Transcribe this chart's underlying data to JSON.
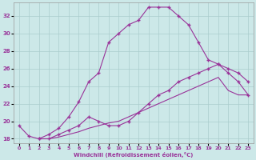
{
  "xlabel": "Windchill (Refroidissement éolien,°C)",
  "bg_color": "#cce8e8",
  "line_color": "#993399",
  "grid_color": "#aacccc",
  "xlim": [
    -0.5,
    23.5
  ],
  "ylim": [
    17.5,
    33.5
  ],
  "xticks": [
    0,
    1,
    2,
    3,
    4,
    5,
    6,
    7,
    8,
    9,
    10,
    11,
    12,
    13,
    14,
    15,
    16,
    17,
    18,
    19,
    20,
    21,
    22,
    23
  ],
  "yticks": [
    18,
    20,
    22,
    24,
    26,
    28,
    30,
    32
  ],
  "curve1_x": [
    0,
    1,
    2,
    3,
    4,
    5,
    6,
    7,
    8,
    9,
    10,
    11,
    12,
    13,
    14,
    15,
    16,
    17,
    18,
    19,
    20,
    21,
    22,
    23
  ],
  "curve1_y": [
    19.5,
    18.3,
    18.0,
    18.5,
    19.2,
    20.5,
    22.2,
    24.5,
    25.5,
    29.0,
    30.0,
    31.0,
    31.5,
    33.0,
    33.0,
    33.0,
    32.0,
    31.0,
    29.0,
    27.0,
    26.5,
    25.5,
    24.5,
    23.0
  ],
  "curve2_x": [
    2,
    3,
    4,
    5,
    6,
    7,
    8,
    9,
    10,
    11,
    12,
    13,
    14,
    15,
    16,
    17,
    18,
    19,
    20,
    21,
    22,
    23
  ],
  "curve2_y": [
    18.0,
    18.0,
    18.5,
    19.0,
    19.5,
    20.5,
    20.0,
    19.5,
    19.5,
    20.0,
    21.0,
    22.0,
    23.0,
    23.5,
    24.5,
    25.0,
    25.5,
    26.0,
    26.5,
    26.0,
    25.5,
    24.5
  ],
  "curve3_x": [
    2,
    3,
    4,
    5,
    6,
    7,
    8,
    9,
    10,
    11,
    12,
    13,
    14,
    15,
    16,
    17,
    18,
    19,
    20,
    21,
    22,
    23
  ],
  "curve3_y": [
    18.0,
    18.0,
    18.2,
    18.5,
    18.8,
    19.2,
    19.5,
    19.8,
    20.0,
    20.5,
    21.0,
    21.5,
    22.0,
    22.5,
    23.0,
    23.5,
    24.0,
    24.5,
    25.0,
    23.5,
    23.0,
    23.0
  ]
}
